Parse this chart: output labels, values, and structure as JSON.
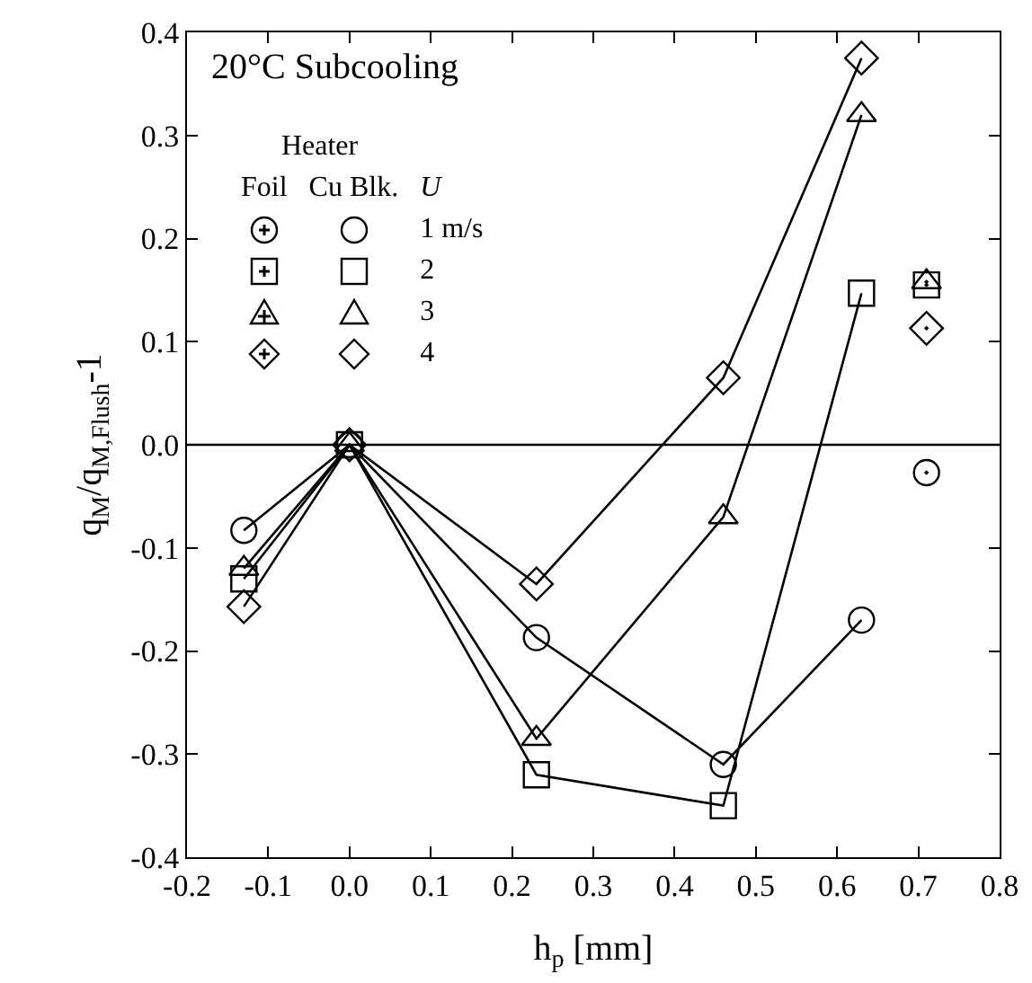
{
  "chart_data": {
    "type": "line",
    "title": "20°C Subcooling",
    "xlabel": "h$_{p}$ [mm]",
    "ylabel": "q$_{M}$/q$_{M,Flush}$-1",
    "legend_title": "Heater",
    "annotations": [
      "Foil",
      "Cu Blk.",
      "U"
    ],
    "series": [
      {
        "name": "1 m/s",
        "marker": "circle",
        "color": "#000000",
        "x": [
          -0.13,
          0,
          0.23,
          0.46,
          0.63
        ],
        "values": [
          -0.083,
          0,
          -0.187,
          -0.31,
          -0.17
        ]
      },
      {
        "name": "2",
        "marker": "square",
        "color": "#000000",
        "x": [
          -0.13,
          0,
          0.23,
          0.46,
          0.63
        ],
        "values": [
          -0.13,
          0,
          -0.32,
          -0.35,
          0.147
        ]
      },
      {
        "name": "3",
        "marker": "triangle",
        "color": "#000000",
        "x": [
          -0.13,
          0,
          0.23,
          0.46,
          0.63
        ],
        "values": [
          -0.12,
          0,
          -0.285,
          -0.07,
          0.32
        ]
      },
      {
        "name": "4",
        "marker": "diamond",
        "color": "#000000",
        "x": [
          -0.13,
          0,
          0.23,
          0.46,
          0.63
        ],
        "values": [
          -0.157,
          0,
          -0.135,
          0.065,
          0.375
        ]
      },
      {
        "type": "scatter",
        "marker": "circle",
        "color": "#000000",
        "x": [
          0.71
        ],
        "values": [
          -0.027
        ]
      },
      {
        "type": "scatter",
        "marker": "square",
        "color": "#000000",
        "x": [
          0.71
        ],
        "values": [
          0.155
        ]
      },
      {
        "type": "scatter",
        "marker": "triangle",
        "color": "#000000",
        "x": [
          0.71
        ],
        "values": [
          0.158
        ]
      },
      {
        "type": "scatter",
        "marker": "diamond",
        "color": "#000000",
        "x": [
          0.71
        ],
        "values": [
          0.113
        ]
      }
    ],
    "xlim": [
      -0.2,
      0.8
    ],
    "xticks": [
      -0.2,
      -0.1,
      {
        "value": 0,
        "label": "0.0"
      },
      0.1,
      0.2,
      0.3,
      0.4,
      0.5,
      0.6,
      0.7,
      0.8
    ],
    "ylim": [
      -0.4,
      0.4
    ],
    "yticks": [
      -0.4,
      -0.3,
      -0.2,
      -0.1,
      {
        "value": 0,
        "label": "0.0"
      },
      0.1,
      0.2,
      0.3,
      0.4
    ],
    "ref_lines": [
      {
        "axis": "y",
        "value": 0,
        "color": "#000000"
      }
    ],
    "grid": false,
    "legend": "top left",
    "line_style": "solid"
  }
}
